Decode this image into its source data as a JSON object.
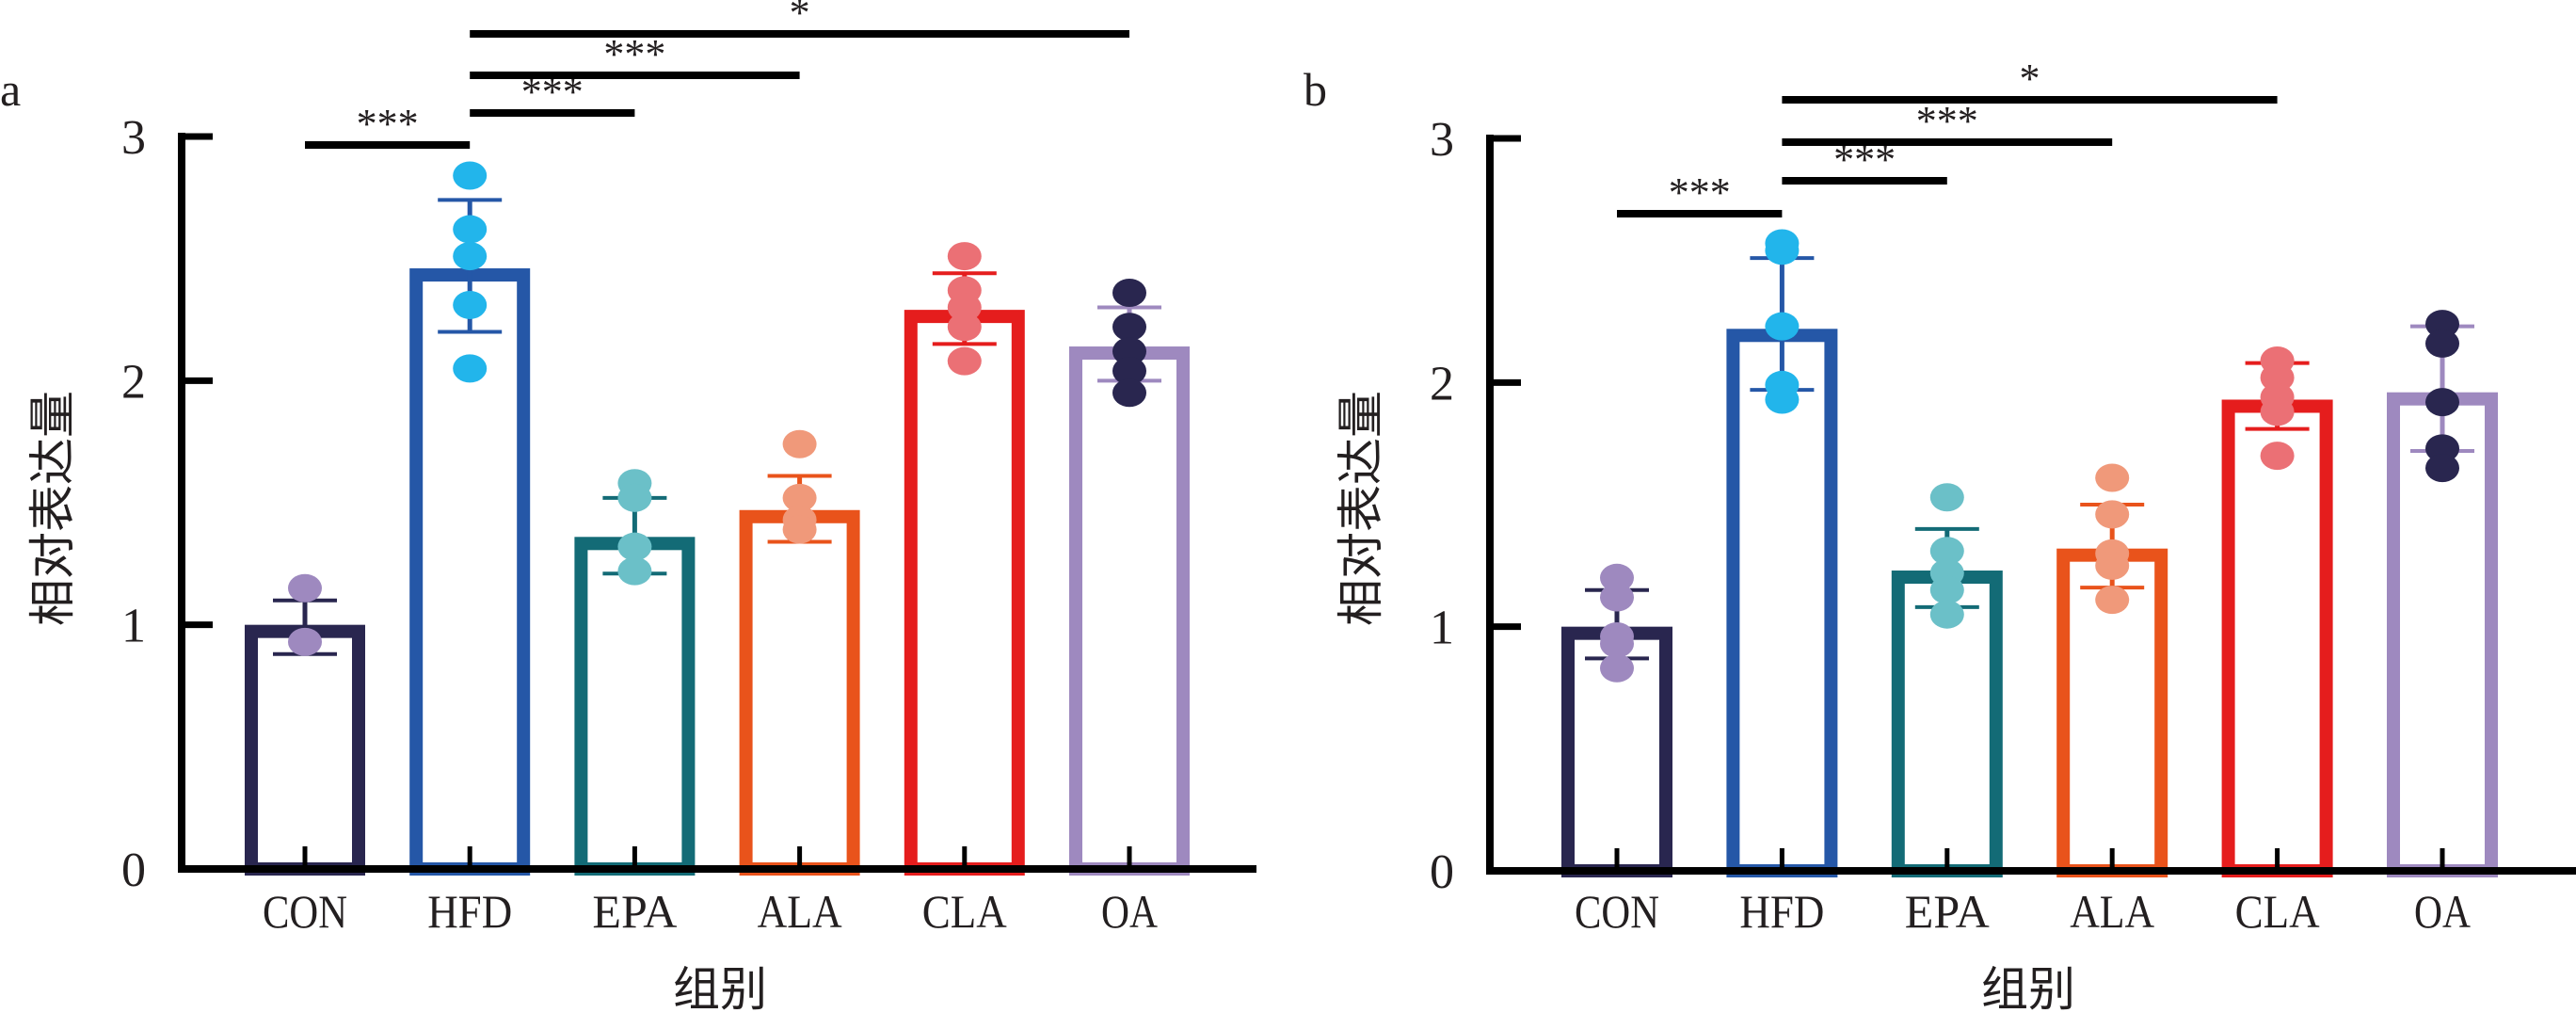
{
  "chart_data": [
    {
      "panel": "a",
      "type": "bar",
      "title": "",
      "xlabel": "组别",
      "ylabel": "相对表达量",
      "ylim": [
        0,
        3
      ],
      "yticks": [
        0,
        1,
        2,
        3
      ],
      "grid": false,
      "legend": "none",
      "categories": [
        "CON",
        "HFD",
        "EPA",
        "ALA",
        "CLA",
        "OA"
      ],
      "values": [
        1.0,
        2.46,
        1.36,
        1.47,
        2.29,
        2.14
      ],
      "error_upper": [
        1.1,
        2.74,
        1.52,
        1.61,
        2.44,
        2.3
      ],
      "error_lower": [
        0.88,
        2.2,
        1.21,
        1.34,
        2.15,
        2.0
      ],
      "points": [
        [
          1.15,
          0.93
        ],
        [
          2.84,
          2.62,
          2.51,
          2.31,
          2.05
        ],
        [
          1.58,
          1.52,
          1.32,
          1.22
        ],
        [
          1.74,
          1.52,
          1.43,
          1.39
        ],
        [
          2.51,
          2.37,
          2.3,
          2.22,
          2.08
        ],
        [
          2.36,
          2.22,
          2.12,
          2.04,
          1.95
        ]
      ],
      "significance": [
        {
          "from": "CON",
          "to": "HFD",
          "label": "***"
        },
        {
          "from": "HFD",
          "to": "EPA",
          "label": "***"
        },
        {
          "from": "HFD",
          "to": "ALA",
          "label": "***"
        },
        {
          "from": "HFD",
          "to": "OA",
          "label": "*"
        }
      ]
    },
    {
      "panel": "b",
      "type": "bar",
      "title": "",
      "xlabel": "组别",
      "ylabel": "相对表达量",
      "ylim": [
        0,
        3
      ],
      "yticks": [
        0,
        1,
        2,
        3
      ],
      "grid": false,
      "legend": "none",
      "categories": [
        "CON",
        "HFD",
        "EPA",
        "ALA",
        "CLA",
        "OA"
      ],
      "values": [
        1.0,
        2.22,
        1.23,
        1.32,
        1.93,
        1.96
      ],
      "error_upper": [
        1.15,
        2.51,
        1.4,
        1.5,
        2.08,
        2.23
      ],
      "error_lower": [
        0.87,
        1.97,
        1.08,
        1.16,
        1.81,
        1.72
      ],
      "points": [
        [
          1.2,
          1.12,
          0.96,
          0.93,
          0.83
        ],
        [
          2.57,
          2.54,
          2.23,
          1.99,
          1.93
        ],
        [
          1.53,
          1.31,
          1.22,
          1.15,
          1.05
        ],
        [
          1.61,
          1.46,
          1.3,
          1.25,
          1.11
        ],
        [
          2.09,
          2.02,
          1.94,
          1.88,
          1.7
        ],
        [
          2.24,
          2.16,
          1.92,
          1.73,
          1.65
        ]
      ],
      "significance": [
        {
          "from": "CON",
          "to": "HFD",
          "label": "***"
        },
        {
          "from": "HFD",
          "to": "EPA",
          "label": "***"
        },
        {
          "from": "HFD",
          "to": "ALA",
          "label": "***"
        },
        {
          "from": "HFD",
          "to": "CLA",
          "label": "*"
        }
      ]
    }
  ],
  "colors": {
    "axis": "#000000",
    "bar_outline": [
      "#29264f",
      "#2557a7",
      "#136b76",
      "#e9531b",
      "#e51d1d",
      "#9e89bf"
    ],
    "points": [
      "#9e89bf",
      "#22b5eb",
      "#6bc0c8",
      "#f0997a",
      "#eb7075",
      "#29264f"
    ],
    "error_bar": [
      "#29264f",
      "#2557a7",
      "#136b76",
      "#e9531b",
      "#e51d1d",
      "#9e89bf"
    ]
  }
}
